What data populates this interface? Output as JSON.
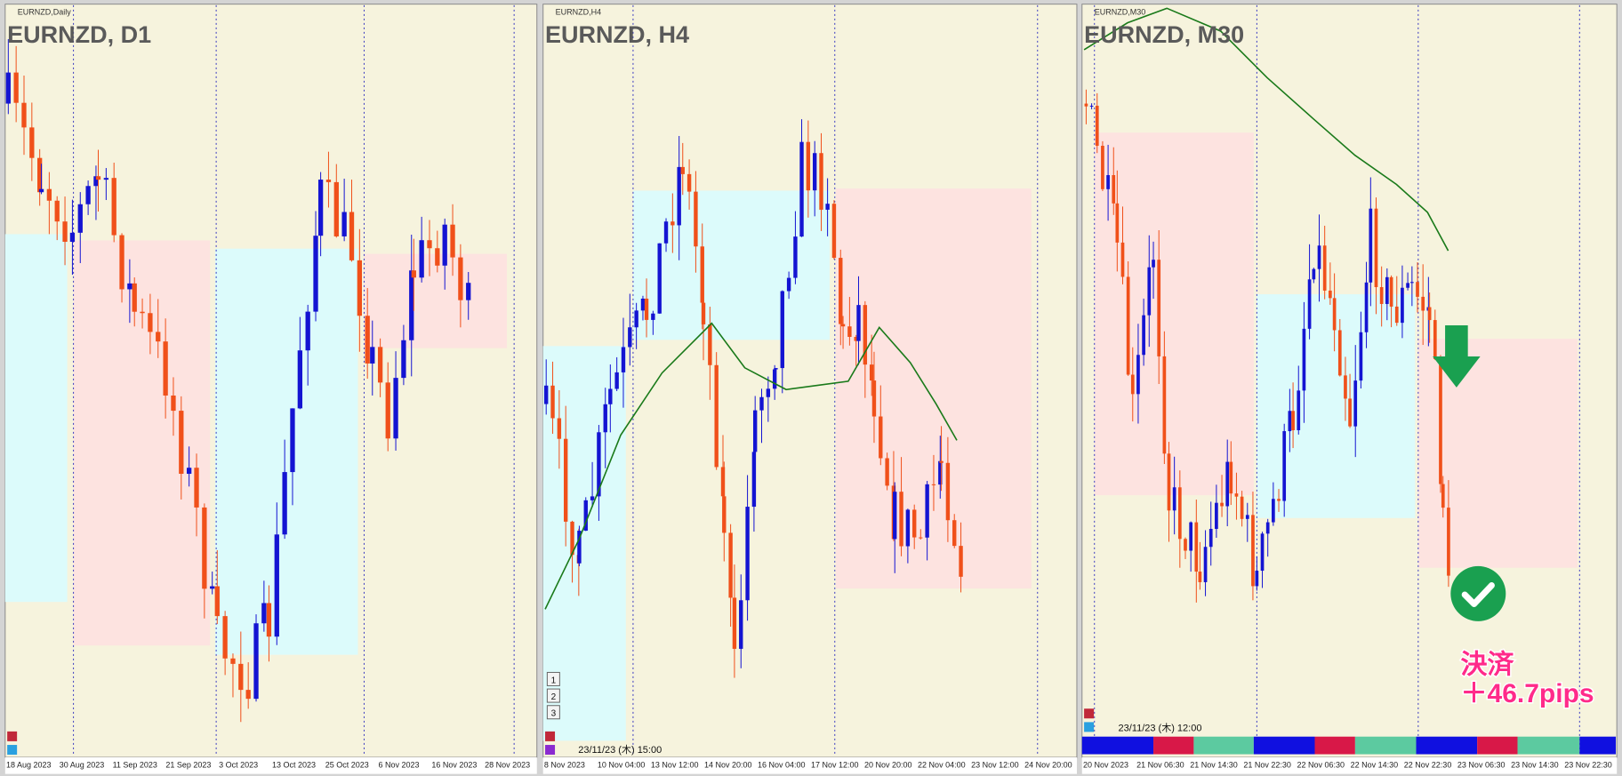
{
  "panels": [
    {
      "symbol_label": "EURNZD,Daily",
      "title": "EURNZD, D1",
      "dates": [
        "18 Aug 2023",
        "30 Aug 2023",
        "11 Sep 2023",
        "21 Sep 2023",
        "3 Oct 2023",
        "13 Oct 2023",
        "25 Oct 2023",
        "6 Nov 2023",
        "16 Nov 2023",
        "28 Nov 2023"
      ]
    },
    {
      "symbol_label": "EURNZD,H4",
      "title": "EURNZD, H4",
      "dates": [
        "8 Nov 2023",
        "10 Nov 04:00",
        "13 Nov 12:00",
        "14 Nov 20:00",
        "16 Nov 04:00",
        "17 Nov 12:00",
        "20 Nov 20:00",
        "22 Nov 04:00",
        "23 Nov 12:00",
        "24 Nov 20:00"
      ],
      "info": "23/11/23 (木) 15:00",
      "buttons": [
        "1",
        "2",
        "3"
      ]
    },
    {
      "symbol_label": "EURNZD,M30",
      "title": "EURNZD, M30",
      "dates": [
        "20 Nov 2023",
        "21 Nov 06:30",
        "21 Nov 14:30",
        "21 Nov 22:30",
        "22 Nov 06:30",
        "22 Nov 14:30",
        "22 Nov 22:30",
        "23 Nov 06:30",
        "23 Nov 14:30",
        "23 Nov 22:30"
      ],
      "info": "23/11/23 (木) 12:00",
      "annotation": {
        "line1": "決済",
        "line2": "＋46.7pips"
      }
    }
  ]
}
